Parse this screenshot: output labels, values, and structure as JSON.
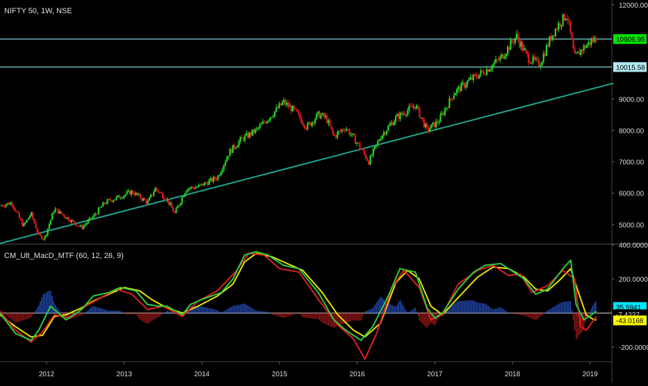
{
  "chart_data": [
    {
      "type": "candlestick",
      "title": "NIFTY 50, 1W, NSE",
      "y_ticks": [
        "12000.00",
        "9000.00",
        "8000.00",
        "7000.00",
        "6000.00",
        "5000.00"
      ],
      "ylim": [
        4400,
        12150
      ],
      "x_ticks": [
        "2012",
        "2013",
        "2014",
        "2015",
        "2016",
        "2017",
        "2018",
        "2019"
      ],
      "horizontal_levels": [
        {
          "value": 10906.95,
          "label": "10906.95",
          "label_bg": "#00e600",
          "label_color": "#000000"
        },
        {
          "value": 10015.58,
          "label": "10015.58",
          "label_bg": "#b2ebf2",
          "label_color": "#000000"
        }
      ],
      "trendline": {
        "start": {
          "date": "2011.4",
          "value": 4400
        },
        "end": {
          "date": "2019.3",
          "value": 9500
        },
        "color": "#1fa58f"
      },
      "price_path": [
        [
          "2011.4",
          5600
        ],
        [
          "2011.55",
          5700
        ],
        [
          "2011.7",
          4950
        ],
        [
          "2011.8",
          5350
        ],
        [
          "2011.9",
          4650
        ],
        [
          "2011.97",
          4550
        ],
        [
          "2012.1",
          5500
        ],
        [
          "2012.3",
          5150
        ],
        [
          "2012.45",
          4900
        ],
        [
          "2012.6",
          5250
        ],
        [
          "2012.75",
          5700
        ],
        [
          "2012.95",
          5900
        ],
        [
          "2013.1",
          6050
        ],
        [
          "2013.3",
          5700
        ],
        [
          "2013.4",
          6150
        ],
        [
          "2013.55",
          5800
        ],
        [
          "2013.65",
          5350
        ],
        [
          "2013.8",
          6150
        ],
        [
          "2013.95",
          6200
        ],
        [
          "2014.2",
          6500
        ],
        [
          "2014.35",
          7300
        ],
        [
          "2014.5",
          7700
        ],
        [
          "2014.7",
          8000
        ],
        [
          "2014.9",
          8500
        ],
        [
          "2015.05",
          8900
        ],
        [
          "2015.2",
          8600
        ],
        [
          "2015.35",
          8100
        ],
        [
          "2015.5",
          8500
        ],
        [
          "2015.6",
          8400
        ],
        [
          "2015.7",
          7800
        ],
        [
          "2015.85",
          8100
        ],
        [
          "2016.0",
          7600
        ],
        [
          "2016.15",
          7000
        ],
        [
          "2016.3",
          7800
        ],
        [
          "2016.5",
          8400
        ],
        [
          "2016.75",
          8800
        ],
        [
          "2016.9",
          8000
        ],
        [
          "2017.05",
          8300
        ],
        [
          "2017.25",
          9200
        ],
        [
          "2017.45",
          9600
        ],
        [
          "2017.65",
          9900
        ],
        [
          "2017.85",
          10300
        ],
        [
          "2018.05",
          11000
        ],
        [
          "2018.2",
          10300
        ],
        [
          "2018.35",
          10100
        ],
        [
          "2018.5",
          11000
        ],
        [
          "2018.6",
          11400
        ],
        [
          "2018.7",
          11700
        ],
        [
          "2018.8",
          10300
        ],
        [
          "2018.9",
          10600
        ],
        [
          "2019.05",
          10900
        ],
        [
          "2019.08",
          10900
        ]
      ]
    },
    {
      "type": "line",
      "title": "CM_Ult_MacD_MTF (60, 12, 26, 9)",
      "y_ticks": [
        "400.0000",
        "200.0000",
        "-200.0000"
      ],
      "ylim": [
        -285,
        400
      ],
      "x_ticks": [
        "2012",
        "2013",
        "2014",
        "2015",
        "2016",
        "2017",
        "2018",
        "2019"
      ],
      "value_labels": [
        {
          "value": 35.5941,
          "label": "35.5941",
          "bg": "#00e5ff",
          "color": "#000000"
        },
        {
          "value": -7.4227,
          "label": "-7.4227",
          "bg": "#000000",
          "color": "#dddddd"
        },
        {
          "value": -43.0168,
          "label": "-43.0168",
          "bg": "#ffff00",
          "color": "#000000"
        }
      ],
      "series": [
        {
          "color": "#2ecc40",
          "points": [
            [
              "2011.4",
              0
            ],
            [
              "2011.6",
              -120
            ],
            [
              "2011.8",
              -160
            ],
            [
              "2011.9",
              -100
            ],
            [
              "2012.05",
              40
            ],
            [
              "2012.25",
              -40
            ],
            [
              "2012.45",
              20
            ],
            [
              "2012.6",
              100
            ],
            [
              "2012.8",
              120
            ],
            [
              "2012.95",
              150
            ],
            [
              "2013.15",
              130
            ],
            [
              "2013.3",
              50
            ],
            [
              "2013.45",
              40
            ],
            [
              "2013.55",
              40
            ],
            [
              "2013.75",
              -10
            ],
            [
              "2013.85",
              50
            ],
            [
              "2014.0",
              80
            ],
            [
              "2014.25",
              120
            ],
            [
              "2014.4",
              200
            ],
            [
              "2014.55",
              340
            ],
            [
              "2014.7",
              360
            ],
            [
              "2014.85",
              340
            ],
            [
              "2015.05",
              280
            ],
            [
              "2015.25",
              260
            ],
            [
              "2015.5",
              120
            ],
            [
              "2015.7",
              -40
            ],
            [
              "2015.85",
              -100
            ],
            [
              "2016.05",
              -160
            ],
            [
              "2016.2",
              -80
            ],
            [
              "2016.4",
              100
            ],
            [
              "2016.55",
              260
            ],
            [
              "2016.75",
              240
            ],
            [
              "2016.9",
              30
            ],
            [
              "2017.0",
              -30
            ],
            [
              "2017.1",
              0
            ],
            [
              "2017.3",
              140
            ],
            [
              "2017.5",
              240
            ],
            [
              "2017.65",
              280
            ],
            [
              "2017.85",
              290
            ],
            [
              "2018.05",
              230
            ],
            [
              "2018.15",
              200
            ],
            [
              "2018.3",
              110
            ],
            [
              "2018.45",
              140
            ],
            [
              "2018.55",
              200
            ],
            [
              "2018.65",
              260
            ],
            [
              "2018.75",
              310
            ],
            [
              "2018.82",
              50
            ],
            [
              "2018.92",
              -40
            ],
            [
              "2019.05",
              0
            ],
            [
              "2019.08",
              10
            ]
          ]
        },
        {
          "color": "#e6e600",
          "points": [
            [
              "2011.4",
              -10
            ],
            [
              "2011.6",
              -80
            ],
            [
              "2011.8",
              -140
            ],
            [
              "2011.95",
              -130
            ],
            [
              "2012.1",
              -20
            ],
            [
              "2012.25",
              -10
            ],
            [
              "2012.45",
              30
            ],
            [
              "2012.6",
              70
            ],
            [
              "2012.8",
              110
            ],
            [
              "2013.0",
              150
            ],
            [
              "2013.2",
              130
            ],
            [
              "2013.35",
              80
            ],
            [
              "2013.55",
              30
            ],
            [
              "2013.75",
              0
            ],
            [
              "2013.95",
              40
            ],
            [
              "2014.2",
              100
            ],
            [
              "2014.4",
              170
            ],
            [
              "2014.55",
              300
            ],
            [
              "2014.7",
              350
            ],
            [
              "2014.9",
              330
            ],
            [
              "2015.1",
              290
            ],
            [
              "2015.3",
              250
            ],
            [
              "2015.55",
              120
            ],
            [
              "2015.75",
              -10
            ],
            [
              "2015.95",
              -100
            ],
            [
              "2016.1",
              -140
            ],
            [
              "2016.3",
              -60
            ],
            [
              "2016.5",
              180
            ],
            [
              "2016.65",
              250
            ],
            [
              "2016.8",
              200
            ],
            [
              "2016.95",
              40
            ],
            [
              "2017.1",
              -10
            ],
            [
              "2017.3",
              90
            ],
            [
              "2017.55",
              210
            ],
            [
              "2017.75",
              270
            ],
            [
              "2017.95",
              260
            ],
            [
              "2018.15",
              210
            ],
            [
              "2018.3",
              140
            ],
            [
              "2018.45",
              130
            ],
            [
              "2018.6",
              190
            ],
            [
              "2018.75",
              260
            ],
            [
              "2018.85",
              120
            ],
            [
              "2018.95",
              -10
            ],
            [
              "2019.05",
              -40
            ],
            [
              "2019.08",
              -40
            ]
          ]
        },
        {
          "color": "#e02020",
          "points": [
            [
              "2011.4",
              10
            ],
            [
              "2011.6",
              -100
            ],
            [
              "2011.8",
              -170
            ],
            [
              "2011.95",
              -110
            ],
            [
              "2012.1",
              -10
            ],
            [
              "2012.3",
              -30
            ],
            [
              "2012.5",
              40
            ],
            [
              "2012.7",
              90
            ],
            [
              "2012.9",
              140
            ],
            [
              "2013.1",
              110
            ],
            [
              "2013.3",
              20
            ],
            [
              "2013.5",
              40
            ],
            [
              "2013.75",
              -20
            ],
            [
              "2013.95",
              70
            ],
            [
              "2014.2",
              130
            ],
            [
              "2014.45",
              250
            ],
            [
              "2014.6",
              350
            ],
            [
              "2014.8",
              340
            ],
            [
              "2015.0",
              260
            ],
            [
              "2015.25",
              240
            ],
            [
              "2015.5",
              80
            ],
            [
              "2015.75",
              -70
            ],
            [
              "2015.95",
              -150
            ],
            [
              "2016.1",
              -270
            ],
            [
              "2016.25",
              -120
            ],
            [
              "2016.45",
              150
            ],
            [
              "2016.6",
              250
            ],
            [
              "2016.8",
              150
            ],
            [
              "2016.95",
              -40
            ],
            [
              "2017.1",
              -10
            ],
            [
              "2017.3",
              170
            ],
            [
              "2017.55",
              250
            ],
            [
              "2017.75",
              280
            ],
            [
              "2017.95",
              220
            ],
            [
              "2018.1",
              230
            ],
            [
              "2018.25",
              120
            ],
            [
              "2018.45",
              160
            ],
            [
              "2018.65",
              250
            ],
            [
              "2018.8",
              200
            ],
            [
              "2018.88",
              -80
            ],
            [
              "2018.95",
              -100
            ],
            [
              "2019.05",
              -40
            ],
            [
              "2019.08",
              -20
            ]
          ]
        }
      ]
    }
  ]
}
